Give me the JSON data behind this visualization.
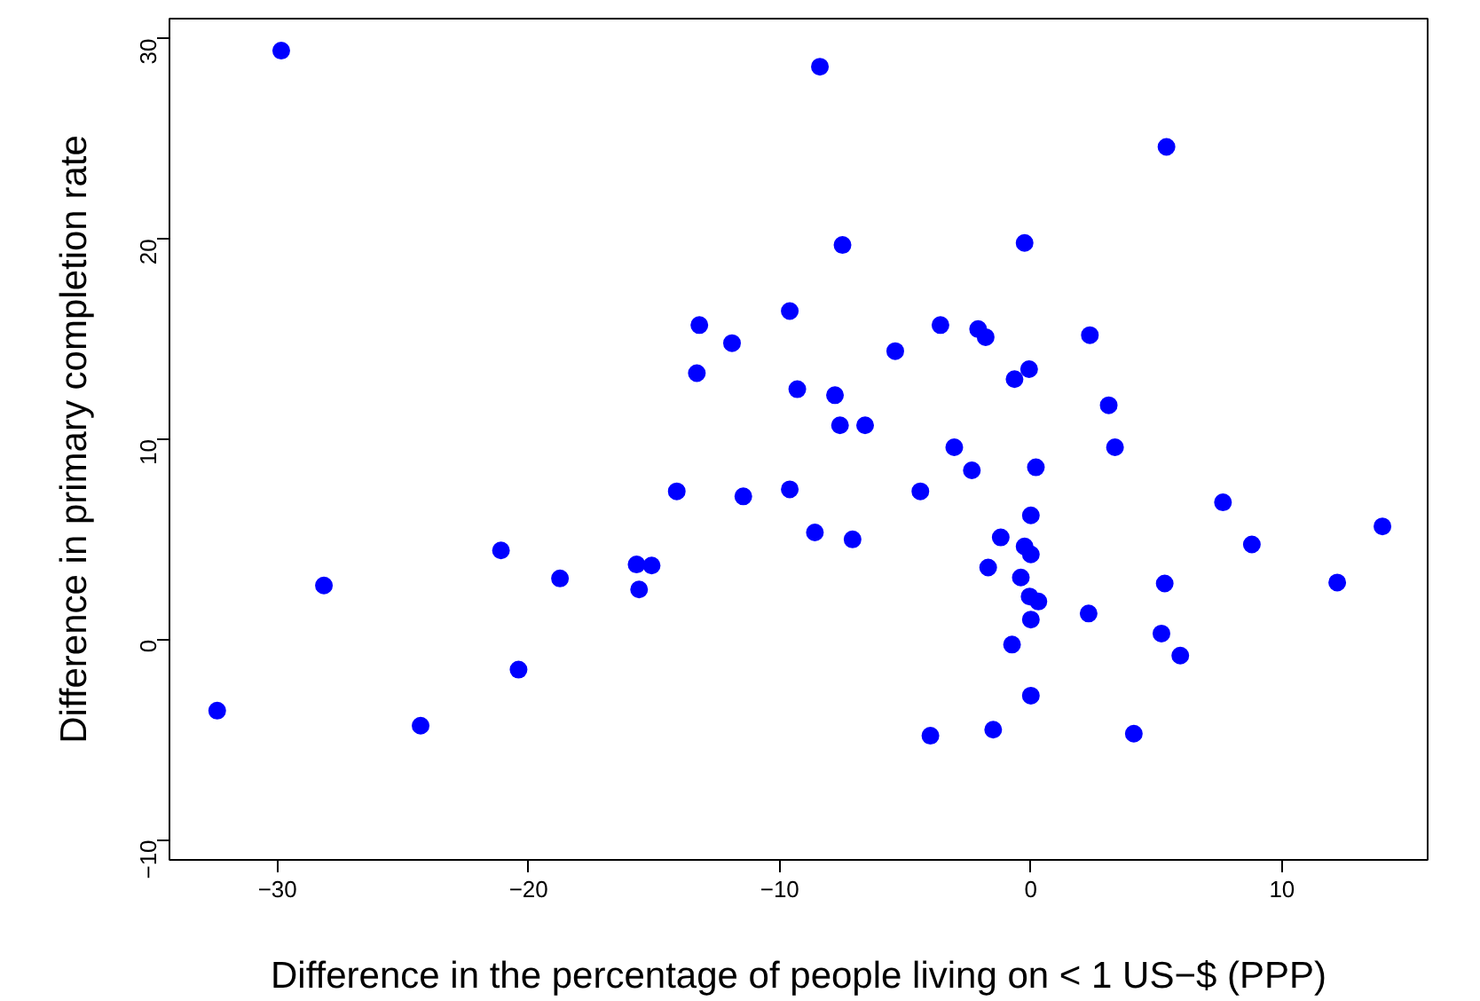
{
  "chart_data": {
    "type": "scatter",
    "xlabel": "Difference in the percentage of people living on < 1 US−$ (PPP)",
    "ylabel": "Difference in primary completion rate",
    "xlim": [
      -34.3,
      15.8
    ],
    "ylim": [
      -11.0,
      31.0
    ],
    "xticks": [
      {
        "value": -30,
        "label": "−30"
      },
      {
        "value": -20,
        "label": "−20"
      },
      {
        "value": -10,
        "label": "−10"
      },
      0,
      10
    ],
    "yticks": [
      {
        "value": -10,
        "label": "−10"
      },
      0,
      10,
      20,
      30
    ],
    "marker": "circle",
    "series": [
      {
        "color": "#0000ff",
        "x": [
          -29.85,
          -13.2,
          -11.9,
          -13.3,
          -9.6,
          -9.3,
          -8.4,
          5.4,
          -7.5,
          -0.25,
          -3.6,
          -2.1,
          -1.8,
          2.35,
          -5.4,
          -7.8,
          -0.65,
          -0.07,
          3.1,
          -7.6,
          -6.6,
          -3.05,
          3.35,
          -2.35,
          0.2,
          -9.6,
          -4.4,
          7.65,
          0.0,
          14.0,
          -8.6,
          -7.1,
          -1.2,
          8.8,
          -0.25,
          0.0,
          -1.7,
          -0.4,
          5.33,
          12.2,
          -0.05,
          0.3,
          2.3,
          0.0,
          5.2,
          -0.75,
          5.95,
          0.0,
          -1.5,
          -4.0,
          4.1,
          -14.1,
          -11.45,
          -21.1,
          -28.15,
          -18.75,
          -15.7,
          -15.1,
          -15.6,
          -20.4,
          -32.4,
          -24.3
        ],
        "values": [
          29.4,
          15.7,
          14.8,
          13.3,
          16.4,
          12.5,
          28.6,
          24.6,
          19.7,
          19.8,
          15.7,
          15.5,
          15.1,
          15.2,
          14.4,
          12.2,
          13.0,
          13.5,
          11.7,
          10.7,
          10.7,
          9.6,
          9.6,
          8.45,
          8.6,
          7.5,
          7.4,
          6.85,
          6.2,
          5.65,
          5.35,
          5.0,
          5.1,
          4.75,
          4.65,
          4.25,
          3.6,
          3.1,
          2.8,
          2.85,
          2.15,
          1.9,
          1.3,
          1.0,
          0.3,
          -0.25,
          -0.8,
          -2.8,
          -4.5,
          -4.8,
          -4.7,
          7.4,
          7.15,
          4.45,
          2.7,
          3.05,
          3.75,
          3.7,
          2.5,
          -1.5,
          -3.55,
          -4.3
        ]
      }
    ]
  }
}
